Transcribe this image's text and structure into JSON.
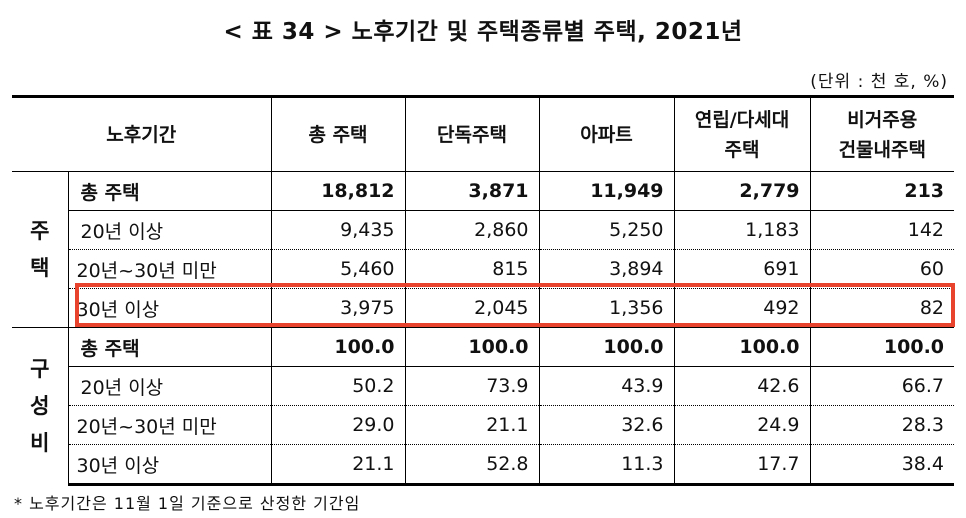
{
  "title": "< 표 34 > 노후기간 및 주택종류별 주택, 2021년",
  "unit": "(단위 : 천 호, %)",
  "columns": {
    "period": "노후기간",
    "total": "총 주택",
    "detached": "단독주택",
    "apartment": "아파트",
    "rowhouse_1": "연립/다세대",
    "rowhouse_2": "주택",
    "nonres_1": "비거주용",
    "nonres_2": "건물내주택"
  },
  "groups": {
    "housing": {
      "line1": "주",
      "line2": "택"
    },
    "composition": {
      "line1": "구",
      "line2": "성",
      "line3": "비"
    }
  },
  "rows_housing": [
    {
      "label": "총 주택",
      "values": [
        "18,812",
        "3,871",
        "11,949",
        "2,779",
        "213"
      ]
    },
    {
      "label": "20년 이상",
      "values": [
        "9,435",
        "2,860",
        "5,250",
        "1,183",
        "142"
      ]
    },
    {
      "label": "20년~30년 미만",
      "values": [
        "5,460",
        "815",
        "3,894",
        "691",
        "60"
      ]
    },
    {
      "label": "30년 이상",
      "values": [
        "3,975",
        "2,045",
        "1,356",
        "492",
        "82"
      ]
    }
  ],
  "rows_composition": [
    {
      "label": "총 주택",
      "values": [
        "100.0",
        "100.0",
        "100.0",
        "100.0",
        "100.0"
      ]
    },
    {
      "label": "20년 이상",
      "values": [
        "50.2",
        "73.9",
        "43.9",
        "42.6",
        "66.7"
      ]
    },
    {
      "label": "20년~30년 미만",
      "values": [
        "29.0",
        "21.1",
        "32.6",
        "24.9",
        "28.3"
      ]
    },
    {
      "label": "30년 이상",
      "values": [
        "21.1",
        "52.8",
        "11.3",
        "17.7",
        "38.4"
      ]
    }
  ],
  "footnote": "* 노후기간은 11월 1일 기준으로 산정한 기간임",
  "colors": {
    "highlight": "#e8432d"
  }
}
